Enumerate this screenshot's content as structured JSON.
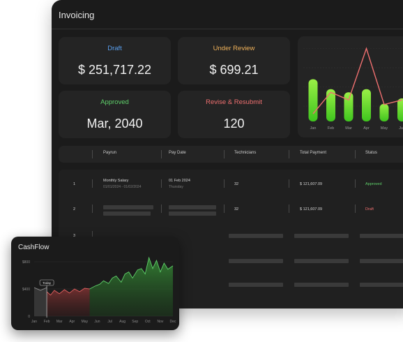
{
  "panel": {
    "title": "Invoicing"
  },
  "cards": [
    {
      "label": "Draft",
      "value": "$ 251,717.22",
      "color": "#5aa0f0"
    },
    {
      "label": "Under Review",
      "value": "$ 699.21",
      "color": "#f0b25a"
    },
    {
      "label": "Approved",
      "value": "Mar, 2040",
      "color": "#5fd16a"
    },
    {
      "label": "Revise & Resubmit",
      "value": "120",
      "color": "#f07070"
    }
  ],
  "chart_data": [
    {
      "type": "bar",
      "categories": [
        "Jan",
        "Feb",
        "Mar",
        "Apr",
        "May",
        "Jun"
      ],
      "series": [
        {
          "type": "bar",
          "values": [
            55,
            42,
            38,
            42,
            23,
            30
          ]
        },
        {
          "type": "line",
          "values": [
            10,
            38,
            28,
            95,
            22,
            28
          ]
        }
      ],
      "ylim": [
        0,
        100
      ],
      "colors": {
        "bar": "#7be23c",
        "line": "#f07070"
      }
    },
    {
      "type": "area",
      "title": "CashFlow",
      "categories": [
        "Jan",
        "Feb",
        "Mar",
        "Apr",
        "May",
        "Jun",
        "Jul",
        "Aug",
        "Sep",
        "Oct",
        "Nov",
        "Dec"
      ],
      "yticks": [
        "$800",
        "$400",
        "0"
      ],
      "ylim": [
        0,
        800
      ],
      "annotation": "Today",
      "series": [
        {
          "segment": "past",
          "x": [
            0,
            0.5,
            1.0
          ],
          "values": [
            420,
            380,
            420
          ],
          "color": "#8a8a8a"
        },
        {
          "segment": "negative",
          "x": [
            1.0,
            1.3,
            1.6,
            2.0,
            2.4,
            2.8,
            3.2,
            3.6,
            4.0,
            4.4
          ],
          "values": [
            360,
            310,
            380,
            330,
            390,
            340,
            400,
            360,
            410,
            400
          ],
          "color": "#e26060"
        },
        {
          "segment": "positive",
          "x": [
            4.4,
            4.8,
            5.2,
            5.5,
            5.9,
            6.2,
            6.5,
            6.9,
            7.2,
            7.5,
            7.8,
            8.2,
            8.5,
            8.8,
            9.1,
            9.4,
            9.7,
            10.0,
            10.3,
            10.6,
            11.0
          ],
          "values": [
            400,
            440,
            470,
            520,
            480,
            560,
            590,
            500,
            620,
            650,
            560,
            680,
            700,
            620,
            860,
            700,
            820,
            650,
            780,
            690,
            740
          ],
          "color": "#5fd16a"
        }
      ]
    }
  ],
  "table": {
    "headers": [
      "Payrun",
      "Pay Date",
      "Technicians",
      "Total Payment",
      "Status"
    ],
    "rows": [
      {
        "num": "1",
        "payrun": "Monthly Salary",
        "payrun_sub": "01/01/2024 - 01/02/2024",
        "date": "01 Feb 2024",
        "date_sub": "Thursday",
        "techs": "32",
        "total": "$ 121,607.09",
        "status": "Approved",
        "status_color": "#5fd16a"
      },
      {
        "num": "2",
        "techs": "32",
        "total": "$ 121,607.09",
        "status": "Draft",
        "status_color": "#f07070"
      },
      {
        "num": "3"
      }
    ]
  }
}
